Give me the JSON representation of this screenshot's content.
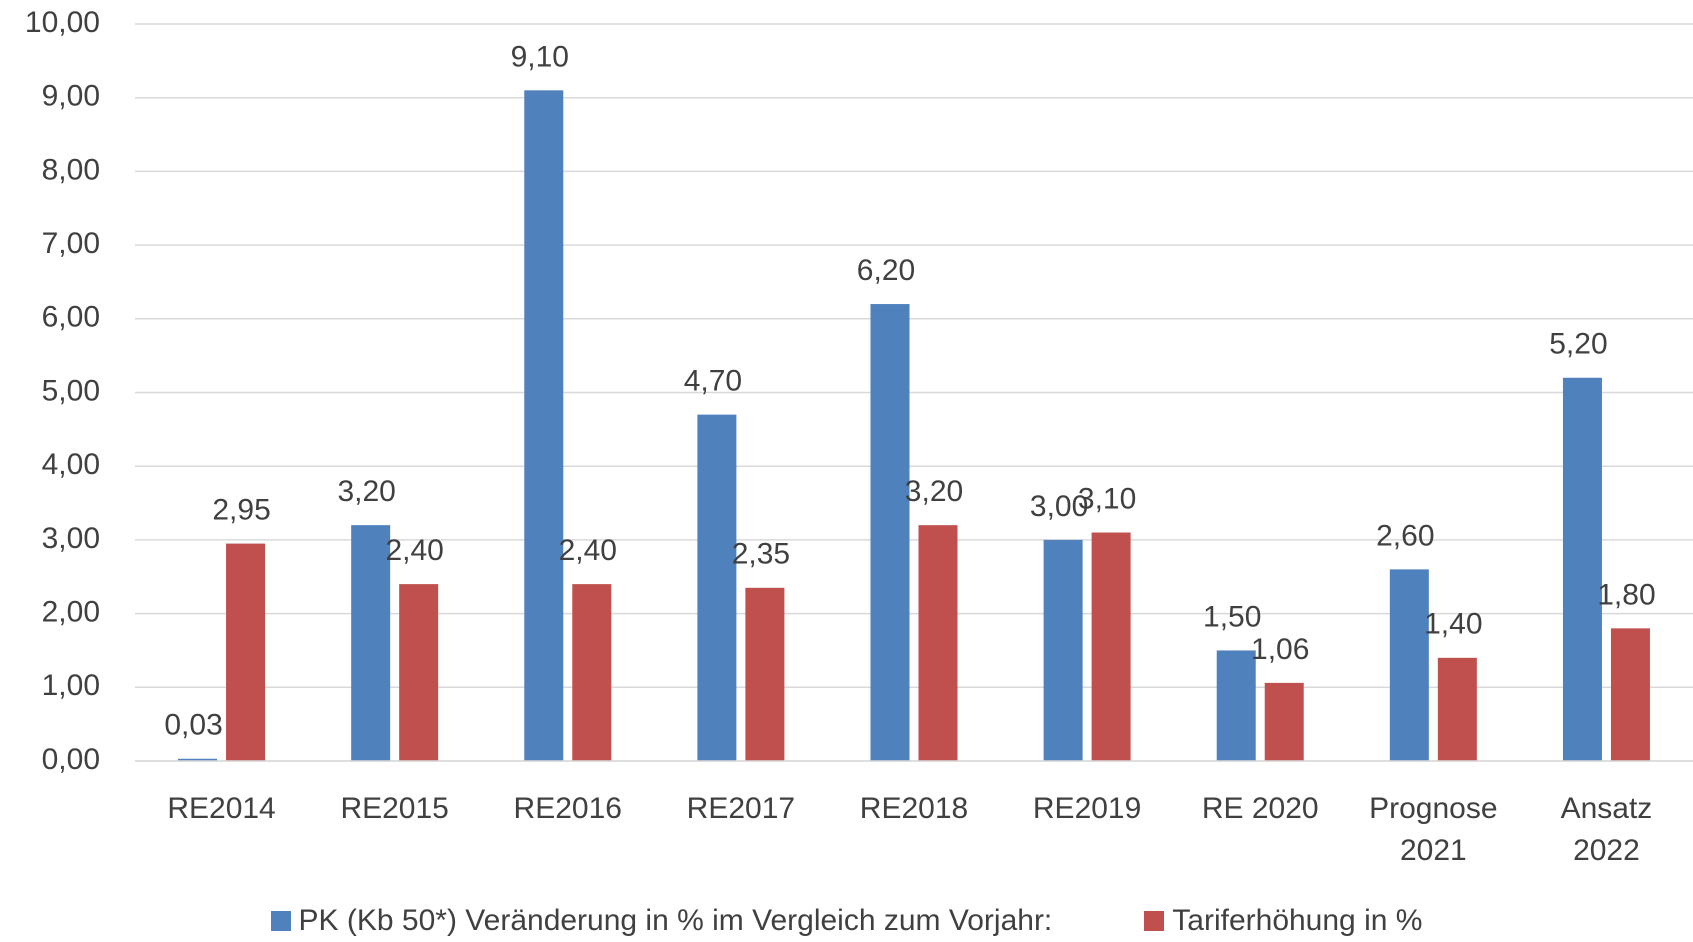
{
  "chart_data": {
    "type": "bar",
    "categories": [
      "RE2014",
      "RE2015",
      "RE2016",
      "RE2017",
      "RE2018",
      "RE2019",
      "RE 2020",
      "Prognose\n2021",
      "Ansatz\n2022"
    ],
    "series": [
      {
        "name": "PK (Kb 50*) Veränderung in % im Vergleich zum Vorjahr:",
        "color": "#4f81bd",
        "values": [
          0.03,
          3.2,
          9.1,
          4.7,
          6.2,
          3.0,
          1.5,
          2.6,
          5.2
        ],
        "value_labels": [
          "0,03",
          "3,20",
          "9,10",
          "4,70",
          "6,20",
          "3,00",
          "1,50",
          "2,60",
          "5,20"
        ]
      },
      {
        "name": "Tariferhöhung in %",
        "color": "#c0504d",
        "values": [
          2.95,
          2.4,
          2.4,
          2.35,
          3.2,
          3.1,
          1.06,
          1.4,
          1.8
        ],
        "value_labels": [
          "2,95",
          "2,40",
          "2,40",
          "2,35",
          "3,20",
          "3,10",
          "1,06",
          "1,40",
          "1,80"
        ]
      }
    ],
    "ylim": [
      0,
      10
    ],
    "yticks": [
      {
        "value": 0,
        "label": "0,00"
      },
      {
        "value": 1,
        "label": "1,00"
      },
      {
        "value": 2,
        "label": "2,00"
      },
      {
        "value": 3,
        "label": "3,00"
      },
      {
        "value": 4,
        "label": "4,00"
      },
      {
        "value": 5,
        "label": "5,00"
      },
      {
        "value": 6,
        "label": "6,00"
      },
      {
        "value": 7,
        "label": "7,00"
      },
      {
        "value": 8,
        "label": "8,00"
      },
      {
        "value": 9,
        "label": "9,00"
      },
      {
        "value": 10,
        "label": "10,00"
      }
    ],
    "grid": true
  }
}
